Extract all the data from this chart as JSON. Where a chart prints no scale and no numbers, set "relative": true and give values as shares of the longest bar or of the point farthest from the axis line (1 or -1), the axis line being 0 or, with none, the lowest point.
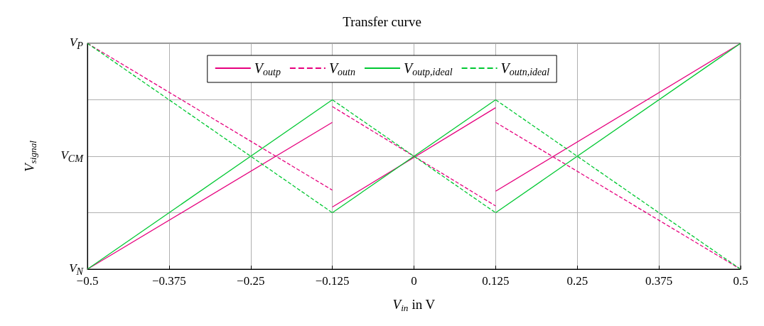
{
  "chart_data": {
    "type": "line",
    "title": "Transfer curve",
    "xlabel": "V$_{in}$ in V",
    "ylabel": "V$_{signal}$",
    "relative": true,
    "xlim": [
      -0.5,
      0.5
    ],
    "xticks": [
      {
        "value": -0.5,
        "label": "−0.5"
      },
      {
        "value": -0.375,
        "label": "−0.375"
      },
      {
        "value": -0.25,
        "label": "−0.25"
      },
      {
        "value": -0.125,
        "label": "−0.125"
      },
      0,
      0.125,
      0.25,
      0.375,
      0.5
    ],
    "annotations": [
      "V$_{N}$",
      "V$_{CM}$",
      "V$_{P}$"
    ],
    "grid": true,
    "legend": "top",
    "marker": "none",
    "series": [
      {
        "name": "V$_{outp}$",
        "color": "#e6007e",
        "line_style": "solid",
        "x": [
          -0.5,
          -0.125
        ],
        "values": [
          0,
          0.65
        ]
      },
      {
        "name": "V$_{outn}$",
        "color": "#e6007e",
        "line_style": "dashed",
        "x": [
          -0.5,
          -0.125
        ],
        "values": [
          1,
          0.35
        ]
      },
      {
        "name": "V$_{outp,ideal}$",
        "color": "#00c832",
        "line_style": "solid",
        "x": [
          -0.5,
          -0.125
        ],
        "values": [
          0,
          0.75
        ]
      },
      {
        "name": "V$_{outn,ideal}$",
        "color": "#00c832",
        "line_style": "dashed",
        "x": [
          -0.5,
          -0.125
        ],
        "values": [
          1,
          0.25
        ]
      },
      {
        "color": "#e6007e",
        "line_style": "solid",
        "x": [
          -0.125,
          0.125
        ],
        "values": [
          0.275,
          0.715
        ]
      },
      {
        "color": "#e6007e",
        "line_style": "solid",
        "x": [
          0.125,
          0.5
        ],
        "values": [
          0.345,
          1
        ]
      },
      {
        "color": "#e6007e",
        "line_style": "dashed",
        "x": [
          -0.125,
          0.125
        ],
        "values": [
          0.72,
          0.28
        ]
      },
      {
        "color": "#e6007e",
        "line_style": "dashed",
        "x": [
          0.125,
          0.5
        ],
        "values": [
          0.65,
          0
        ]
      },
      {
        "color": "#00c832",
        "line_style": "solid",
        "x": [
          -0.125,
          0.125
        ],
        "values": [
          0.25,
          0.75
        ]
      },
      {
        "color": "#00c832",
        "line_style": "solid",
        "x": [
          0.125,
          0.5
        ],
        "values": [
          0.25,
          1
        ]
      },
      {
        "color": "#00c832",
        "line_style": "dashed",
        "x": [
          -0.125,
          0.125
        ],
        "values": [
          0.75,
          0.25
        ]
      },
      {
        "color": "#00c832",
        "line_style": "dashed",
        "x": [
          0.125,
          0.5
        ],
        "values": [
          0.75,
          0
        ]
      }
    ]
  }
}
